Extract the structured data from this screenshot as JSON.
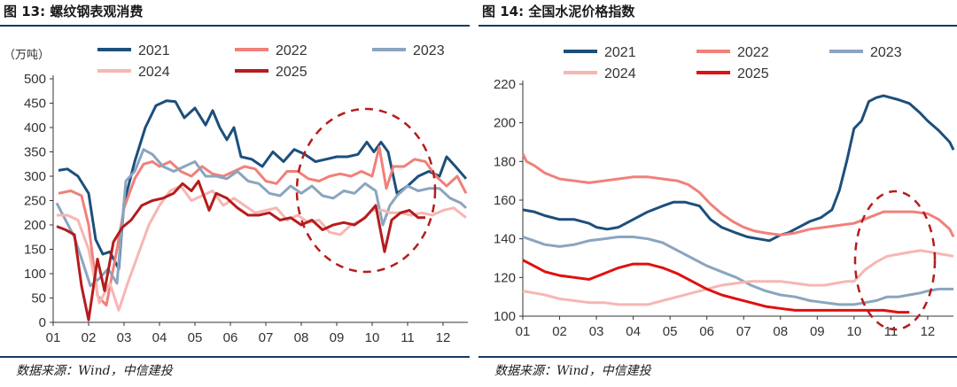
{
  "chart_data": [
    {
      "type": "line",
      "title": "图 13: 螺纹钢表观消费",
      "unit_label": "（万吨）",
      "ylim": [
        0,
        500
      ],
      "yticks": [
        0,
        50,
        100,
        150,
        200,
        250,
        300,
        350,
        400,
        450,
        500
      ],
      "xlim": [
        1,
        12.7
      ],
      "xticks": [
        "01",
        "02",
        "03",
        "04",
        "05",
        "06",
        "07",
        "08",
        "09",
        "10",
        "11",
        "12"
      ],
      "annotation": "dashed-ellipse",
      "series": [
        {
          "name": "2021",
          "color": "#1c4f7c",
          "x": [
            1.15,
            1.4,
            1.7,
            2.0,
            2.2,
            2.4,
            2.6,
            2.85,
            3.0,
            3.3,
            3.6,
            3.9,
            4.2,
            4.45,
            4.7,
            5.0,
            5.3,
            5.5,
            5.7,
            5.9,
            6.1,
            6.3,
            6.6,
            6.9,
            7.2,
            7.5,
            7.8,
            8.1,
            8.4,
            8.7,
            9.0,
            9.3,
            9.6,
            9.85,
            10.05,
            10.25,
            10.45,
            10.7,
            11.0,
            11.3,
            11.6,
            11.9,
            12.1,
            12.35,
            12.65
          ],
          "y": [
            312,
            315,
            300,
            265,
            170,
            140,
            145,
            110,
            245,
            330,
            400,
            445,
            455,
            453,
            420,
            440,
            405,
            435,
            400,
            375,
            400,
            340,
            335,
            320,
            350,
            330,
            355,
            345,
            330,
            335,
            340,
            340,
            345,
            370,
            350,
            370,
            350,
            265,
            280,
            300,
            310,
            300,
            340,
            320,
            295
          ]
        },
        {
          "name": "2022",
          "color": "#f0807a",
          "x": [
            1.15,
            1.5,
            1.8,
            2.0,
            2.25,
            2.5,
            2.8,
            3.0,
            3.3,
            3.55,
            3.8,
            4.0,
            4.3,
            4.6,
            4.9,
            5.2,
            5.5,
            5.8,
            6.1,
            6.4,
            6.7,
            7.0,
            7.3,
            7.6,
            7.9,
            8.2,
            8.5,
            8.8,
            9.1,
            9.4,
            9.7,
            10.0,
            10.2,
            10.4,
            10.6,
            10.9,
            11.2,
            11.5,
            11.8,
            12.1,
            12.4,
            12.65
          ],
          "y": [
            265,
            270,
            260,
            200,
            55,
            35,
            150,
            235,
            295,
            325,
            330,
            320,
            330,
            310,
            300,
            320,
            305,
            300,
            310,
            320,
            315,
            290,
            285,
            310,
            310,
            295,
            290,
            300,
            305,
            300,
            310,
            300,
            360,
            275,
            320,
            320,
            335,
            330,
            300,
            280,
            300,
            265
          ]
        },
        {
          "name": "2023",
          "color": "#8aa5bf",
          "x": [
            1.1,
            1.35,
            1.6,
            1.85,
            2.05,
            2.3,
            2.55,
            2.8,
            3.05,
            3.3,
            3.55,
            3.8,
            4.1,
            4.4,
            4.7,
            5.0,
            5.3,
            5.6,
            5.9,
            6.2,
            6.5,
            6.8,
            7.1,
            7.4,
            7.7,
            8.0,
            8.3,
            8.6,
            8.9,
            9.2,
            9.5,
            9.8,
            10.1,
            10.3,
            10.5,
            10.7,
            11.0,
            11.3,
            11.6,
            11.9,
            12.2,
            12.5,
            12.65
          ],
          "y": [
            245,
            210,
            175,
            120,
            75,
            90,
            110,
            80,
            290,
            310,
            355,
            345,
            320,
            310,
            320,
            330,
            300,
            300,
            295,
            310,
            290,
            285,
            265,
            260,
            280,
            265,
            280,
            260,
            255,
            270,
            265,
            285,
            270,
            200,
            240,
            260,
            280,
            270,
            275,
            275,
            255,
            245,
            235
          ]
        },
        {
          "name": "2024",
          "color": "#f7b6b3",
          "x": [
            1.1,
            1.4,
            1.7,
            2.0,
            2.3,
            2.6,
            2.85,
            3.1,
            3.4,
            3.7,
            4.0,
            4.3,
            4.6,
            4.9,
            5.2,
            5.5,
            5.8,
            6.1,
            6.4,
            6.7,
            7.0,
            7.3,
            7.6,
            7.9,
            8.2,
            8.5,
            8.8,
            9.1,
            9.4,
            9.7,
            10.0,
            10.3,
            10.5,
            10.8,
            11.1,
            11.4,
            11.7,
            12.0,
            12.3,
            12.65
          ],
          "y": [
            220,
            220,
            210,
            150,
            40,
            80,
            25,
            80,
            140,
            200,
            240,
            270,
            280,
            250,
            260,
            270,
            240,
            255,
            240,
            225,
            230,
            235,
            210,
            220,
            205,
            210,
            185,
            180,
            200,
            210,
            230,
            230,
            225,
            225,
            220,
            225,
            220,
            230,
            235,
            215
          ]
        },
        {
          "name": "2025",
          "color": "#b51c1c",
          "x": [
            1.1,
            1.35,
            1.6,
            1.8,
            2.0,
            2.25,
            2.45,
            2.7,
            2.95,
            3.2,
            3.5,
            3.8,
            4.1,
            4.4,
            4.65,
            4.9,
            5.1,
            5.4,
            5.6,
            5.9,
            6.2,
            6.5,
            6.8,
            7.1,
            7.4,
            7.7,
            8.0,
            8.3,
            8.6,
            8.9,
            9.2,
            9.5,
            9.8,
            10.1,
            10.35,
            10.55,
            10.8,
            11.05,
            11.3,
            11.5
          ],
          "y": [
            197,
            190,
            180,
            75,
            5,
            130,
            65,
            165,
            195,
            210,
            240,
            250,
            255,
            265,
            285,
            270,
            290,
            230,
            265,
            255,
            235,
            220,
            220,
            225,
            210,
            215,
            200,
            210,
            190,
            200,
            205,
            200,
            215,
            240,
            145,
            210,
            225,
            230,
            215,
            215
          ]
        }
      ]
    },
    {
      "type": "line",
      "title": "图 14: 全国水泥价格指数",
      "ylim": [
        100,
        220
      ],
      "yticks": [
        100,
        120,
        140,
        160,
        180,
        200,
        220
      ],
      "xlim": [
        1,
        12.7
      ],
      "xticks": [
        "01",
        "02",
        "03",
        "04",
        "05",
        "06",
        "07",
        "08",
        "09",
        "10",
        "11",
        "12"
      ],
      "annotation": "dashed-ellipse",
      "series": [
        {
          "name": "2021",
          "color": "#1c4f7c",
          "x": [
            1.0,
            1.3,
            1.6,
            2.0,
            2.4,
            2.8,
            3.0,
            3.3,
            3.6,
            4.0,
            4.4,
            4.8,
            5.1,
            5.4,
            5.8,
            6.1,
            6.4,
            6.8,
            7.1,
            7.4,
            7.7,
            8.0,
            8.2,
            8.5,
            8.8,
            9.1,
            9.4,
            9.6,
            9.8,
            10.0,
            10.2,
            10.4,
            10.6,
            10.8,
            11.0,
            11.2,
            11.5,
            11.8,
            12.0,
            12.3,
            12.6,
            12.7
          ],
          "y": [
            155,
            154,
            152,
            150,
            150,
            148,
            146,
            145,
            146,
            150,
            154,
            157,
            159,
            159,
            157,
            150,
            146,
            143,
            141,
            140,
            139,
            142,
            143,
            146,
            149,
            151,
            155,
            165,
            180,
            197,
            201,
            211,
            213,
            214,
            213,
            212,
            210,
            205,
            201,
            196,
            190,
            186
          ]
        },
        {
          "name": "2022",
          "color": "#f0807a",
          "x": [
            1.0,
            1.1,
            1.3,
            1.6,
            2.0,
            2.4,
            2.8,
            3.2,
            3.6,
            4.0,
            4.4,
            4.8,
            5.2,
            5.5,
            5.8,
            6.1,
            6.4,
            6.7,
            7.0,
            7.3,
            7.6,
            8.0,
            8.4,
            8.8,
            9.2,
            9.6,
            10.0,
            10.4,
            10.8,
            11.2,
            11.6,
            12.0,
            12.3,
            12.6,
            12.7
          ],
          "y": [
            184,
            180,
            178,
            174,
            171,
            170,
            169,
            170,
            171,
            172,
            172,
            171,
            170,
            168,
            164,
            158,
            153,
            149,
            146,
            144,
            143,
            142,
            143,
            145,
            146,
            147,
            148,
            151,
            154,
            154,
            154,
            153,
            150,
            145,
            141
          ]
        },
        {
          "name": "2023",
          "color": "#8aa5bf",
          "x": [
            1.0,
            1.3,
            1.6,
            2.0,
            2.4,
            2.8,
            3.2,
            3.6,
            4.0,
            4.4,
            4.8,
            5.2,
            5.6,
            6.0,
            6.4,
            6.8,
            7.2,
            7.6,
            8.0,
            8.4,
            8.8,
            9.2,
            9.6,
            10.0,
            10.3,
            10.6,
            10.9,
            11.2,
            11.5,
            11.8,
            12.0,
            12.3,
            12.7
          ],
          "y": [
            141,
            139,
            137,
            136,
            137,
            139,
            140,
            141,
            141,
            140,
            138,
            134,
            130,
            126,
            123,
            120,
            116,
            113,
            111,
            110,
            108,
            107,
            106,
            106,
            107,
            108,
            110,
            110,
            111,
            112,
            113,
            114,
            114
          ]
        },
        {
          "name": "2024",
          "color": "#f7b6b3",
          "x": [
            1.0,
            1.3,
            1.6,
            2.0,
            2.4,
            2.8,
            3.2,
            3.6,
            4.0,
            4.4,
            4.8,
            5.2,
            5.6,
            6.0,
            6.4,
            6.8,
            7.2,
            7.6,
            8.0,
            8.4,
            8.8,
            9.2,
            9.5,
            9.8,
            10.0,
            10.3,
            10.6,
            10.9,
            11.2,
            11.5,
            11.8,
            12.1,
            12.4,
            12.7
          ],
          "y": [
            113,
            112,
            111,
            109,
            108,
            107,
            107,
            106,
            106,
            106,
            108,
            110,
            112,
            114,
            116,
            117,
            118,
            118,
            118,
            117,
            116,
            116,
            117,
            118,
            118,
            124,
            128,
            131,
            132,
            133,
            134,
            133,
            132,
            131
          ]
        },
        {
          "name": "2025",
          "color": "#e01010",
          "x": [
            1.0,
            1.3,
            1.6,
            2.0,
            2.4,
            2.8,
            3.2,
            3.6,
            4.0,
            4.4,
            4.8,
            5.2,
            5.6,
            6.0,
            6.4,
            6.8,
            7.2,
            7.6,
            8.0,
            8.4,
            8.8,
            9.2,
            9.6,
            10.0,
            10.4,
            10.8,
            11.2,
            11.5
          ],
          "y": [
            129,
            126,
            123,
            121,
            120,
            119,
            122,
            125,
            127,
            127,
            125,
            122,
            118,
            114,
            111,
            109,
            107,
            105,
            104,
            103,
            103,
            103,
            103,
            103,
            103,
            103,
            102,
            102
          ]
        }
      ]
    }
  ],
  "source_left": "数据来源：Wind，中信建投",
  "source_right": "数据来源：Wind，中信建投"
}
